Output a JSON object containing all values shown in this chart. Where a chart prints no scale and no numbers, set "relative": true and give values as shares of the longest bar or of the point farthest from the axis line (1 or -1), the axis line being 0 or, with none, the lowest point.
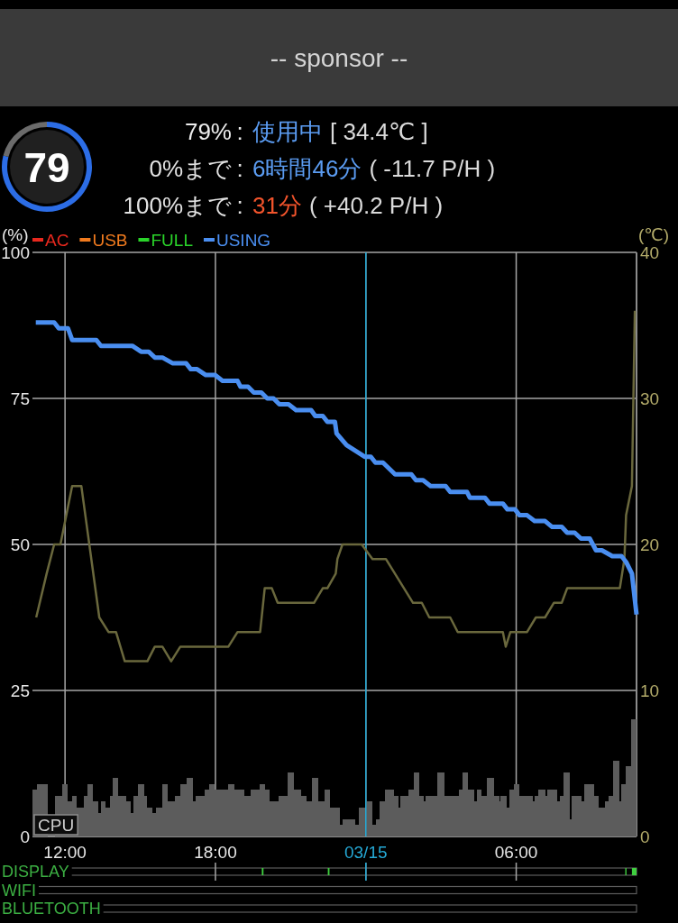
{
  "chart_data": [
    {
      "type": "other",
      "title": "-- sponsor --"
    },
    {
      "type": "donut",
      "categories": [
        null,
        null
      ],
      "values": [
        79,
        21
      ],
      "colors": [
        "#2c6de6",
        "#6b6b6b"
      ],
      "annotations": [
        "79"
      ]
    },
    {
      "type": "other",
      "annotations": [
        "79%",
        ":",
        "使用中",
        "[ 34.4℃ ]",
        "0%まで",
        ":",
        "6時間46分",
        "( -11.7 P/H )",
        "100%まで",
        ":",
        "31分",
        "( +40.2 P/H )"
      ],
      "colors": [
        "#ececec",
        "#ececec",
        "#5b9cf2",
        "#dadada",
        "#e2e2e2",
        "#e2e2e2",
        "#5b9cf2",
        "#dadada",
        "#e2e2e2",
        "#e2e2e2",
        "#f2542c",
        "#dadada"
      ]
    },
    {
      "type": "line",
      "ylabel": "(%)",
      "y2label": "(℃)",
      "xlim": [
        "--03-14T10:42",
        "--03-15T10:48"
      ],
      "xticks": [
        {
          "value": "--03-14T12:00",
          "label": "12:00"
        },
        {
          "value": "--03-14T18:00",
          "label": "18:00"
        },
        {
          "value": "--03-15T00:00",
          "label": "03/15"
        },
        {
          "value": "--03-15T06:00",
          "label": "06:00"
        }
      ],
      "ylim": [
        0,
        100
      ],
      "yticks": [
        0,
        25,
        50,
        75,
        100
      ],
      "y2lim": [
        0,
        40
      ],
      "y2ticks": [
        0,
        10,
        20,
        30,
        40
      ],
      "grid": true,
      "legend": "top left",
      "ref_lines": [
        {
          "axis": "x",
          "value": "--03-15T00:00",
          "color": "#25a9d6"
        }
      ],
      "series": [
        {
          "type": "histogram",
          "name": "CPU",
          "color": "#5c5c5c",
          "bins": [
            "--03-14T10:43",
            "--03-14T10:52",
            "--03-14T11:19",
            "--03-14T11:35",
            "--03-14T11:54",
            "--03-14T12:07",
            "--03-14T12:16",
            "--03-14T12:28",
            "--03-14T12:44",
            "--03-14T12:54",
            "--03-14T13:07",
            "--03-14T13:19",
            "--03-14T13:25",
            "--03-14T13:37",
            "--03-14T13:47",
            "--03-14T13:55",
            "--03-14T14:08",
            "--03-14T14:26",
            "--03-14T14:38",
            "--03-14T14:44",
            "--03-14T14:55",
            "--03-14T15:09",
            "--03-14T15:16",
            "--03-14T15:30",
            "--03-14T15:37",
            "--03-14T15:52",
            "--03-14T16:05",
            "--03-14T16:23",
            "--03-14T16:36",
            "--03-14T16:52",
            "--03-14T17:07",
            "--03-14T17:13",
            "--03-14T17:34",
            "--03-14T17:45",
            "--03-14T17:59",
            "--03-14T18:31",
            "--03-14T18:45",
            "--03-14T19:10",
            "--03-14T19:24",
            "--03-14T19:45",
            "--03-14T19:59",
            "--03-14T20:10",
            "--03-14T20:31",
            "--03-14T20:52",
            "--03-14T21:08",
            "--03-14T21:25",
            "--03-14T21:38",
            "--03-14T21:52",
            "--03-14T22:07",
            "--03-14T22:21",
            "--03-14T22:35",
            "--03-14T22:57",
            "--03-14T23:05",
            "--03-14T23:34",
            "--03-14T23:44",
            "--03-15T00:01",
            "--03-15T00:16",
            "--03-15T00:24",
            "--03-15T00:32",
            "--03-15T00:45",
            "--03-15T01:07",
            "--03-15T01:18",
            "--03-15T01:23",
            "--03-15T01:43",
            "--03-15T01:56",
            "--03-15T02:08",
            "--03-15T02:19",
            "--03-15T02:24",
            "--03-15T02:52",
            "--03-15T03:08",
            "--03-15T03:42",
            "--03-15T03:52",
            "--03-15T04:05",
            "--03-15T04:19",
            "--03-15T04:25",
            "--03-15T04:37",
            "--03-15T04:50",
            "--03-15T05:07",
            "--03-15T05:19",
            "--03-15T05:23",
            "--03-15T05:37",
            "--03-15T05:44",
            "--03-15T05:55",
            "--03-15T06:07",
            "--03-15T06:39",
            "--03-15T06:44",
            "--03-15T06:53",
            "--03-15T07:09",
            "--03-15T07:14",
            "--03-15T07:37",
            "--03-15T07:44",
            "--03-15T07:53",
            "--03-15T08:08",
            "--03-15T08:13",
            "--03-15T08:37",
            "--03-15T08:43",
            "--03-15T09:07",
            "--03-15T09:18",
            "--03-15T09:33",
            "--03-15T09:41",
            "--03-15T09:52",
            "--03-15T10:06",
            "--03-15T10:11",
            "--03-15T10:22",
            "--03-15T10:34",
            "--03-15T10:48"
          ],
          "values": [
            8,
            9,
            null,
            7,
            9,
            6,
            7,
            5,
            7,
            9,
            6,
            4,
            6,
            5,
            7,
            10,
            7,
            6,
            4,
            7,
            9,
            7,
            5,
            4,
            5,
            9,
            6,
            7,
            9,
            10,
            6,
            7,
            8,
            9,
            8,
            9,
            8,
            7,
            8,
            9,
            8,
            6,
            7,
            11,
            8,
            7,
            6,
            10,
            6,
            8,
            5,
            2,
            3,
            2,
            5,
            6,
            2,
            3,
            6,
            8,
            7,
            5,
            7,
            8,
            11,
            7,
            6,
            7,
            11,
            7,
            8,
            11,
            8,
            6,
            8,
            7,
            10,
            7,
            6,
            7,
            5,
            8,
            9,
            7,
            6,
            7,
            8,
            7,
            8,
            6,
            7,
            11,
            3,
            7,
            6,
            9,
            7,
            5,
            6,
            7,
            13,
            6,
            9,
            12,
            20
          ]
        },
        {
          "axis": "y2",
          "color": "#6a683d",
          "x": [
            "--03-14T10:51",
            "--03-14T11:16",
            "--03-14T11:34",
            "--03-14T11:49",
            "--03-14T12:17",
            "--03-14T12:39",
            "--03-14T13:22",
            "--03-14T13:44",
            "--03-14T14:02",
            "--03-14T14:23",
            "--03-14T15:17",
            "--03-14T15:35",
            "--03-14T15:53",
            "--03-14T16:14",
            "--03-14T16:36",
            "--03-14T18:31",
            "--03-14T18:53",
            "--03-14T19:47",
            "--03-14T19:58",
            "--03-14T20:15",
            "--03-14T20:29",
            "--03-14T21:56",
            "--03-14T22:17",
            "--03-14T22:28",
            "--03-14T22:48",
            "--03-14T22:52",
            "--03-14T23:04",
            "--03-14T23:50",
            "--03-15T00:16",
            "--03-15T00:48",
            "--03-15T01:53",
            "--03-15T02:14",
            "--03-15T02:32",
            "--03-15T03:22",
            "--03-15T03:40",
            "--03-15T05:28",
            "--03-15T05:35",
            "--03-15T05:46",
            "--03-15T06:26",
            "--03-15T06:47",
            "--03-15T07:09",
            "--03-15T07:30",
            "--03-15T07:49",
            "--03-15T08:02",
            "--03-15T10:08",
            "--03-15T10:19",
            "--03-15T10:23",
            "--03-15T10:37",
            "--03-15T10:44"
          ],
          "values": [
            15,
            18,
            20,
            20,
            24,
            24,
            15,
            14,
            14,
            12,
            12,
            13,
            13,
            12,
            13,
            13,
            14,
            14,
            17,
            17,
            16,
            16,
            17,
            17,
            18,
            19,
            20,
            20,
            19,
            19,
            16,
            16,
            15,
            15,
            14,
            14,
            13,
            14,
            14,
            15,
            15,
            16,
            16,
            17,
            17,
            19,
            22,
            24,
            36
          ]
        },
        {
          "name": "AC",
          "color": "#e8281e"
        },
        {
          "name": "USB",
          "color": "#f07a1e"
        },
        {
          "name": "FULL",
          "color": "#2ad42a"
        },
        {
          "name": "USING",
          "color": "#4a8ef0",
          "x": [
            "--03-14T10:50",
            "--03-14T11:34",
            "--03-14T11:45",
            "--03-14T12:07",
            "--03-14T12:17",
            "--03-14T13:15",
            "--03-14T13:26",
            "--03-14T14:41",
            "--03-14T15:02",
            "--03-14T15:20",
            "--03-14T15:35",
            "--03-14T15:53",
            "--03-14T16:18",
            "--03-14T16:50",
            "--03-14T17:01",
            "--03-14T17:16",
            "--03-14T17:37",
            "--03-14T17:59",
            "--03-14T18:17",
            "--03-14T18:53",
            "--03-14T19:00",
            "--03-14T19:18",
            "--03-14T19:32",
            "--03-14T19:50",
            "--03-14T20:04",
            "--03-14T20:19",
            "--03-14T20:33",
            "--03-14T20:55",
            "--03-14T21:13",
            "--03-14T21:49",
            "--03-14T21:59",
            "--03-14T22:17",
            "--03-14T22:28",
            "--03-14T22:46",
            "--03-14T22:50",
            "--03-14T23:14",
            "--03-14T23:58",
            "--03-15T00:12",
            "--03-15T00:23",
            "--03-15T00:41",
            "--03-15T01:10",
            "--03-15T01:49",
            "--03-15T02:00",
            "--03-15T02:17",
            "--03-15T02:35",
            "--03-15T03:11",
            "--03-15T03:22",
            "--03-15T04:02",
            "--03-15T04:09",
            "--03-15T04:45",
            "--03-15T04:56",
            "--03-15T05:28",
            "--03-15T05:39",
            "--03-15T05:57",
            "--03-15T06:08",
            "--03-15T06:26",
            "--03-15T06:44",
            "--03-15T07:09",
            "--03-15T07:26",
            "--03-15T07:49",
            "--03-15T08:02",
            "--03-15T08:20",
            "--03-15T08:35",
            "--03-15T08:56",
            "--03-15T09:11",
            "--03-15T09:25",
            "--03-15T09:50",
            "--03-15T10:12",
            "--03-15T10:23",
            "--03-15T10:37",
            "--03-15T10:48"
          ],
          "values": [
            88,
            88,
            87,
            87,
            85,
            85,
            84,
            84,
            83,
            83,
            82,
            82,
            81,
            81,
            80,
            80,
            79,
            79,
            78,
            78,
            77,
            77,
            76,
            76,
            75,
            75,
            74,
            74,
            73,
            73,
            72,
            72,
            71,
            71,
            69,
            67,
            65,
            65,
            64,
            64,
            62,
            62,
            61,
            61,
            60,
            60,
            59,
            59,
            58,
            58,
            57,
            57,
            56,
            56,
            55,
            55,
            54,
            54,
            53,
            53,
            52,
            52,
            51,
            51,
            49,
            49,
            48,
            48,
            47,
            45,
            38
          ]
        }
      ]
    },
    {
      "type": "area",
      "relative": true,
      "ylabel": "DISPLAY",
      "xlim": [
        "--03-14T10:42",
        "--03-15T10:48"
      ],
      "xticks": [
        {
          "value": "--03-14T12:00",
          "label": null
        },
        {
          "value": "--03-14T18:00",
          "label": null
        },
        {
          "value": "--03-15T00:00",
          "label": null
        },
        {
          "value": "--03-15T06:00",
          "label": null
        }
      ],
      "tick_labels": false,
      "grid": "x",
      "ref_lines": [
        {
          "axis": "x",
          "value": "--03-15T00:00",
          "color": "#25a9d6"
        }
      ],
      "series": [
        {
          "color": "#3fcf3f",
          "x": [
            "--03-14T19:51",
            "--03-14T19:51",
            "--03-14T19:55",
            "--03-14T19:55",
            "--03-14T22:29",
            "--03-14T22:29",
            "--03-14T22:33",
            "--03-14T22:33",
            "--03-15T10:21",
            "--03-15T10:21",
            "--03-15T10:24",
            "--03-15T10:24",
            "--03-15T10:37",
            "--03-15T10:37",
            "--03-15T10:48"
          ],
          "values": [
            0,
            1,
            1,
            0,
            0,
            1,
            1,
            0,
            0,
            1,
            1,
            0,
            0,
            1,
            1
          ]
        }
      ]
    },
    {
      "type": "other",
      "annotations": [
        "WIFI"
      ]
    },
    {
      "type": "other",
      "annotations": [
        "BLUETOOTH"
      ]
    }
  ]
}
